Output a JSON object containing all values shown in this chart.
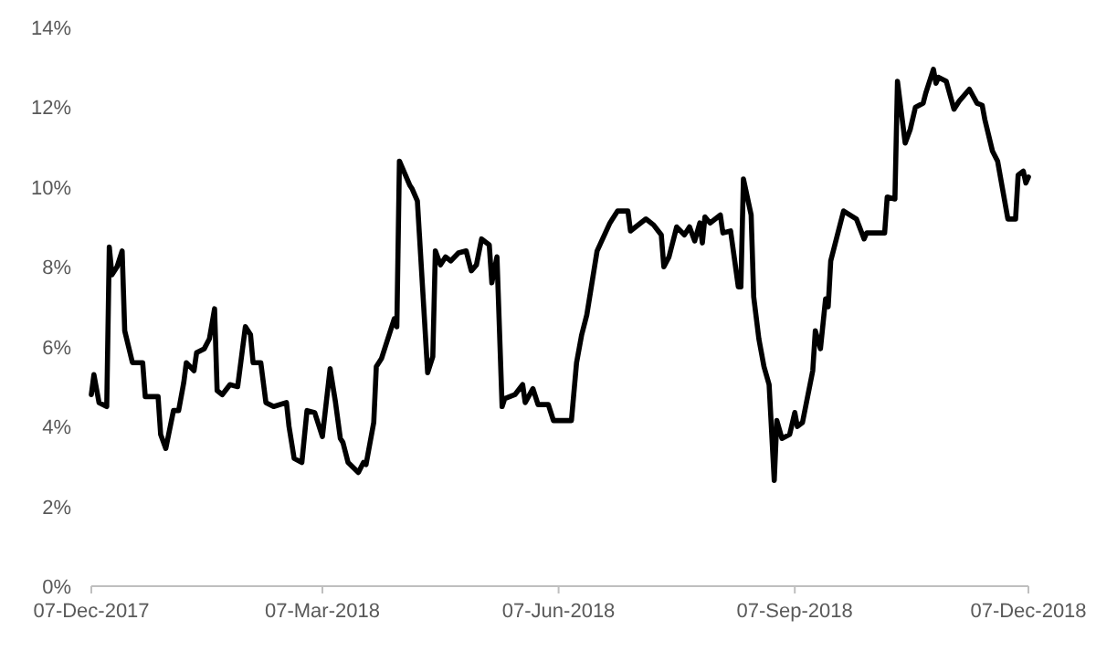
{
  "chart_data": {
    "type": "line",
    "xlim": [
      "2017-12-07",
      "2018-12-07"
    ],
    "xticks": [
      {
        "value": "2017-12-07",
        "label": "07-Dec-2017"
      },
      {
        "value": "2018-03-07",
        "label": "07-Mar-2018"
      },
      {
        "value": "2018-06-07",
        "label": "07-Jun-2018"
      },
      {
        "value": "2018-09-07",
        "label": "07-Sep-2018"
      },
      {
        "value": "2018-12-07",
        "label": "07-Dec-2018"
      }
    ],
    "ylim": [
      0,
      14
    ],
    "yticks": [
      {
        "value": 0,
        "label": "0%"
      },
      {
        "value": 2,
        "label": "2%"
      },
      {
        "value": 4,
        "label": "4%"
      },
      {
        "value": 6,
        "label": "6%"
      },
      {
        "value": 8,
        "label": "8%"
      },
      {
        "value": 10,
        "label": "10%"
      },
      {
        "value": 12,
        "label": "12%"
      },
      {
        "value": 14,
        "label": "14%"
      }
    ],
    "grid": false,
    "marker": "none",
    "line_style": "solid",
    "x": [
      "2017-12-07",
      "2017-12-08",
      "2017-12-10",
      "2017-12-13",
      "2017-12-14",
      "2017-12-15",
      "2017-12-17",
      "2017-12-19",
      "2017-12-20",
      "2017-12-23",
      "2017-12-27",
      "2017-12-28",
      "2018-01-02",
      "2018-01-03",
      "2018-01-05",
      "2018-01-08",
      "2018-01-10",
      "2018-01-12",
      "2018-01-13",
      "2018-01-16",
      "2018-01-17",
      "2018-01-20",
      "2018-01-22",
      "2018-01-24",
      "2018-01-25",
      "2018-01-27",
      "2018-01-30",
      "2018-02-02",
      "2018-02-05",
      "2018-02-07",
      "2018-02-08",
      "2018-02-11",
      "2018-02-13",
      "2018-02-16",
      "2018-02-21",
      "2018-02-22",
      "2018-02-24",
      "2018-02-27",
      "2018-03-01",
      "2018-03-04",
      "2018-03-07",
      "2018-03-10",
      "2018-03-12",
      "2018-03-14",
      "2018-03-15",
      "2018-03-17",
      "2018-03-21",
      "2018-03-23",
      "2018-03-24",
      "2018-03-27",
      "2018-03-28",
      "2018-03-30",
      "2018-04-04",
      "2018-04-05",
      "2018-04-06",
      "2018-04-10",
      "2018-04-11",
      "2018-04-13",
      "2018-04-17",
      "2018-04-19",
      "2018-04-20",
      "2018-04-22",
      "2018-04-24",
      "2018-04-26",
      "2018-04-29",
      "2018-05-02",
      "2018-05-04",
      "2018-05-06",
      "2018-05-08",
      "2018-05-11",
      "2018-05-12",
      "2018-05-14",
      "2018-05-16",
      "2018-05-17",
      "2018-05-21",
      "2018-05-24",
      "2018-05-25",
      "2018-05-28",
      "2018-05-30",
      "2018-06-03",
      "2018-06-05",
      "2018-06-07",
      "2018-06-12",
      "2018-06-14",
      "2018-06-16",
      "2018-06-18",
      "2018-06-22",
      "2018-06-27",
      "2018-06-28",
      "2018-06-30",
      "2018-07-04",
      "2018-07-05",
      "2018-07-11",
      "2018-07-14",
      "2018-07-17",
      "2018-07-18",
      "2018-07-20",
      "2018-07-23",
      "2018-07-26",
      "2018-07-28",
      "2018-07-30",
      "2018-08-01",
      "2018-08-02",
      "2018-08-03",
      "2018-08-05",
      "2018-08-09",
      "2018-08-10",
      "2018-08-13",
      "2018-08-16",
      "2018-08-17",
      "2018-08-18",
      "2018-08-21",
      "2018-08-22",
      "2018-08-24",
      "2018-08-26",
      "2018-08-28",
      "2018-08-30",
      "2018-08-31",
      "2018-09-02",
      "2018-09-05",
      "2018-09-07",
      "2018-09-08",
      "2018-09-10",
      "2018-09-14",
      "2018-09-15",
      "2018-09-17",
      "2018-09-19",
      "2018-09-20",
      "2018-09-21",
      "2018-09-26",
      "2018-10-01",
      "2018-10-04",
      "2018-10-05",
      "2018-10-12",
      "2018-10-13",
      "2018-10-16",
      "2018-10-17",
      "2018-10-20",
      "2018-10-22",
      "2018-10-24",
      "2018-10-27",
      "2018-10-28",
      "2018-10-31",
      "2018-11-01",
      "2018-11-02",
      "2018-11-05",
      "2018-11-08",
      "2018-11-10",
      "2018-11-14",
      "2018-11-17",
      "2018-11-19",
      "2018-11-20",
      "2018-11-23",
      "2018-11-25",
      "2018-11-29",
      "2018-12-02",
      "2018-12-03",
      "2018-12-05",
      "2018-12-06",
      "2018-12-07"
    ],
    "series": [
      {
        "color": "#000000",
        "values": [
          4.8,
          5.3,
          4.6,
          4.5,
          8.5,
          7.8,
          8.0,
          8.4,
          6.4,
          5.6,
          5.6,
          4.75,
          4.75,
          3.8,
          3.45,
          4.4,
          4.4,
          5.1,
          5.6,
          5.4,
          5.85,
          5.95,
          6.2,
          6.95,
          4.9,
          4.8,
          5.05,
          5.0,
          6.5,
          6.3,
          5.6,
          5.6,
          4.6,
          4.5,
          4.6,
          4.0,
          3.2,
          3.1,
          4.4,
          4.35,
          3.75,
          5.45,
          4.65,
          3.7,
          3.6,
          3.1,
          2.85,
          3.1,
          3.05,
          4.1,
          5.5,
          5.7,
          6.7,
          6.5,
          10.65,
          10.05,
          9.95,
          9.65,
          5.35,
          5.75,
          8.4,
          8.05,
          8.25,
          8.15,
          8.35,
          8.4,
          7.9,
          8.05,
          8.7,
          8.55,
          7.6,
          8.25,
          4.5,
          4.7,
          4.8,
          5.05,
          4.6,
          4.95,
          4.55,
          4.55,
          4.15,
          4.15,
          4.15,
          5.6,
          6.3,
          6.8,
          8.4,
          9.1,
          9.2,
          9.4,
          9.4,
          8.9,
          9.2,
          9.05,
          8.8,
          8.0,
          8.25,
          9.0,
          8.8,
          9.0,
          8.65,
          9.1,
          8.6,
          9.25,
          9.1,
          9.3,
          8.85,
          8.9,
          7.5,
          7.5,
          10.2,
          9.3,
          7.25,
          6.2,
          5.5,
          5.05,
          2.65,
          4.15,
          3.7,
          3.8,
          4.35,
          4.0,
          4.1,
          5.4,
          6.4,
          5.95,
          7.2,
          7.0,
          8.15,
          9.4,
          9.2,
          8.7,
          8.85,
          8.85,
          9.75,
          9.7,
          12.65,
          11.1,
          11.45,
          12.0,
          12.1,
          12.35,
          12.95,
          12.6,
          12.75,
          12.65,
          11.95,
          12.15,
          12.45,
          12.1,
          12.05,
          11.7,
          10.9,
          10.65,
          9.2,
          9.2,
          10.3,
          10.4,
          10.1,
          10.25
        ]
      }
    ]
  }
}
